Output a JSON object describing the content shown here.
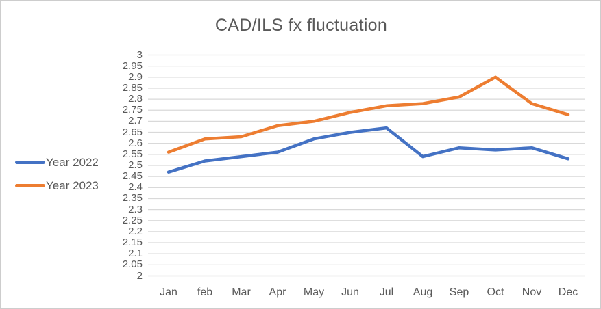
{
  "chart_data": {
    "type": "line",
    "title": "CAD/ILS fx fluctuation",
    "categories": [
      "Jan",
      "feb",
      "Mar",
      "Apr",
      "May",
      "Jun",
      "Jul",
      "Aug",
      "Sep",
      "Oct",
      "Nov",
      "Dec"
    ],
    "series": [
      {
        "name": "Year 2022",
        "color": "#4472C4",
        "values": [
          2.47,
          2.52,
          2.54,
          2.56,
          2.62,
          2.65,
          2.67,
          2.54,
          2.58,
          2.57,
          2.58,
          2.53
        ]
      },
      {
        "name": "Year 2023",
        "color": "#ED7D31",
        "values": [
          2.56,
          2.62,
          2.63,
          2.68,
          2.7,
          2.74,
          2.77,
          2.78,
          2.81,
          2.9,
          2.78,
          2.73
        ]
      }
    ],
    "ylim": [
      2,
      3
    ],
    "ytick_step": 0.05,
    "yticks": [
      "3",
      "2.95",
      "2.9",
      "2.85",
      "2.8",
      "2.75",
      "2.7",
      "2.65",
      "2.6",
      "2.55",
      "2.5",
      "2.45",
      "2.4",
      "2.35",
      "2.3",
      "2.25",
      "2.2",
      "2.15",
      "2.1",
      "2.05",
      "2"
    ],
    "grid": true,
    "legend_position": "left",
    "colors": {
      "gridline": "#D9D9D9",
      "axis_line": "#BFBFBF",
      "text": "#595959",
      "background": "#FFFFFF",
      "border": "#CDCDCD"
    }
  }
}
